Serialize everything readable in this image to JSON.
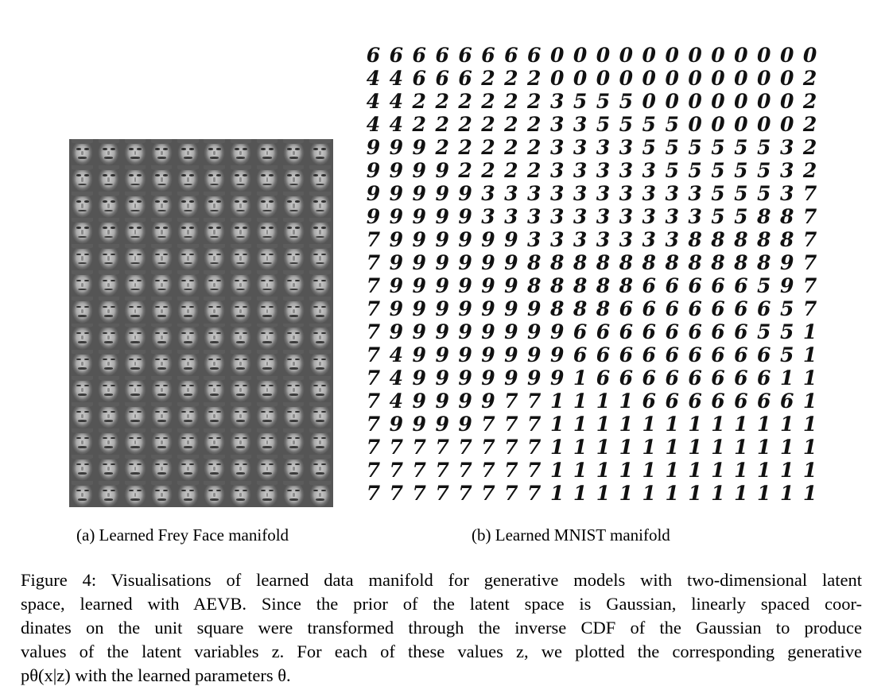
{
  "figure": {
    "panel_a": {
      "caption": "(a) Learned Frey Face manifold",
      "grid": {
        "rows": 14,
        "cols": 10
      }
    },
    "panel_b": {
      "caption": "(b) Learned MNIST manifold",
      "rows": [
        "66666666000000000000",
        "44666222000000000002",
        "44222222355500000002",
        "44222222335555000002",
        "99922222333355555532",
        "99992222333335555532",
        "99999333333333355537",
        "99999333333333355887",
        "79999993333333888887",
        "79999998888888888897",
        "79999998888866666597",
        "79999999888666666657",
        "79999999966666666551",
        "74999999966666666651",
        "74999999916666666611",
        "74999977111166666661",
        "79999777111111111111",
        "77777777111111111111",
        "77777777111111111111",
        "77777777111111111111"
      ]
    },
    "caption_lines": [
      "Figure 4: Visualisations of learned data manifold for generative models with two-dimensional latent",
      "space, learned with AEVB. Since the prior of the latent space is Gaussian, linearly spaced coor-",
      "dinates on the unit square were transformed through the inverse CDF of the Gaussian to produce",
      "values of the latent variables z. For each of these values z, we plotted the corresponding generative",
      "pθ(x|z) with the learned parameters θ."
    ]
  }
}
